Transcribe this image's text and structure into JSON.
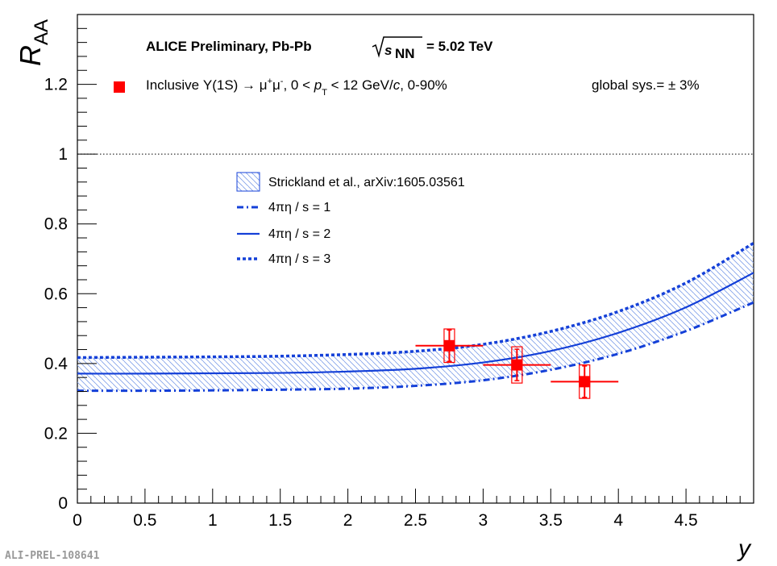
{
  "chart_data": {
    "type": "scatter",
    "title": "ALICE Preliminary, Pb-Pb",
    "energy_label": "= 5.02 TeV",
    "energy_symbol_s": "s",
    "energy_symbol_sub": "NN",
    "xlabel": "y",
    "ylabel_main": "R",
    "ylabel_sub": "AA",
    "xlim": [
      0,
      5.0
    ],
    "ylim": [
      0,
      1.4
    ],
    "x_ticks": [
      0,
      0.5,
      1,
      1.5,
      2,
      2.5,
      3,
      3.5,
      4,
      4.5
    ],
    "x_tick_labels": [
      "0",
      "0.5",
      "1",
      "1.5",
      "2",
      "2.5",
      "3",
      "3.5",
      "4",
      "4.5"
    ],
    "y_ticks": [
      0,
      0.2,
      0.4,
      0.6,
      0.8,
      1,
      1.2
    ],
    "y_tick_labels": [
      "0",
      "0.2",
      "0.4",
      "0.6",
      "0.8",
      "1",
      "1.2"
    ],
    "reference_line_y": 1,
    "series_label_prefix": "Inclusive Υ(1S) → μ",
    "series_label_mid": "μ",
    "series_label_cond": ", 0 < ",
    "series_label_pt": "p",
    "series_label_pt_sub": "T",
    "series_label_suffix": " < 12 GeV/",
    "series_label_c": "c",
    "series_label_end": ", 0-90%",
    "global_sys": "global sys.= ± 3%",
    "points": [
      {
        "x": 2.75,
        "y": 0.451,
        "xerr": 0.25,
        "stat_lo": 0.045,
        "stat_hi": 0.045,
        "sys": 0.048
      },
      {
        "x": 3.25,
        "y": 0.396,
        "xerr": 0.25,
        "stat_lo": 0.045,
        "stat_hi": 0.045,
        "sys": 0.052
      },
      {
        "x": 3.75,
        "y": 0.348,
        "xerr": 0.25,
        "stat_lo": 0.045,
        "stat_hi": 0.045,
        "sys": 0.048
      }
    ],
    "model": {
      "legend_title": "Strickland et al., arXiv:1605.03561",
      "curves": [
        {
          "name": "4πη / s = 1",
          "style": "dashdot",
          "x": [
            0,
            0.5,
            1,
            1.5,
            2,
            2.5,
            3,
            3.5,
            4,
            4.5,
            5.0
          ],
          "y": [
            0.322,
            0.322,
            0.323,
            0.325,
            0.328,
            0.336,
            0.352,
            0.382,
            0.428,
            0.493,
            0.575
          ]
        },
        {
          "name": "4πη / s = 2",
          "style": "solid",
          "x": [
            0,
            0.5,
            1,
            1.5,
            2,
            2.5,
            3,
            3.5,
            4,
            4.5,
            5.0
          ],
          "y": [
            0.371,
            0.371,
            0.372,
            0.373,
            0.377,
            0.385,
            0.403,
            0.436,
            0.488,
            0.561,
            0.66
          ]
        },
        {
          "name": "4πη / s = 3",
          "style": "dotted",
          "x": [
            0,
            0.5,
            1,
            1.5,
            2,
            2.5,
            3,
            3.5,
            4,
            4.5,
            5.0
          ],
          "y": [
            0.417,
            0.418,
            0.419,
            0.421,
            0.426,
            0.435,
            0.455,
            0.492,
            0.549,
            0.631,
            0.745
          ]
        }
      ]
    },
    "colors": {
      "data": "#ff0000",
      "model": "#1440d8",
      "band_fill": "#7f9fe8"
    }
  },
  "watermark": "ALI-PREL-108641"
}
